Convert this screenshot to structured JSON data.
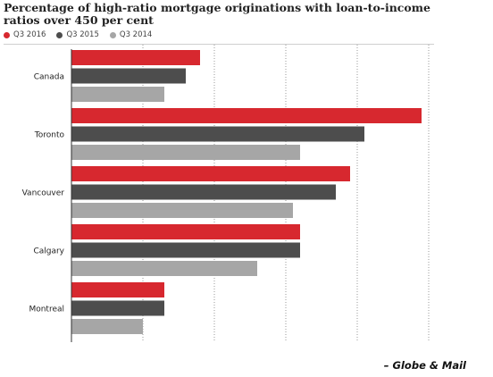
{
  "title": "Percentage of high-ratio mortgage originations with loan-to-income ratios over 450 per cent",
  "source": "– Globe & Mail",
  "colors": {
    "q3_2016": "#d7282f",
    "q3_2015": "#4d4d4d",
    "q3_2014": "#a6a6a6",
    "gridline": "#9a9a9a"
  },
  "chart_data": {
    "type": "bar",
    "orientation": "horizontal",
    "title": "Percentage of high-ratio mortgage originations with loan-to-income ratios over 450 per cent",
    "categories": [
      "Canada",
      "Toronto",
      "Vancouver",
      "Calgary",
      "Montreal"
    ],
    "series": [
      {
        "name": "Q3 2016",
        "color": "#d7282f",
        "values": [
          18,
          49,
          39,
          32,
          13
        ]
      },
      {
        "name": "Q3 2015",
        "color": "#4d4d4d",
        "values": [
          16,
          41,
          37,
          32,
          13
        ]
      },
      {
        "name": "Q3 2014",
        "color": "#a6a6a6",
        "values": [
          13,
          32,
          31,
          26,
          10
        ]
      }
    ],
    "xlim": [
      0,
      50
    ],
    "gridlines": [
      10,
      20,
      30,
      40,
      50
    ],
    "grid": true,
    "legend_position": "top-left"
  }
}
